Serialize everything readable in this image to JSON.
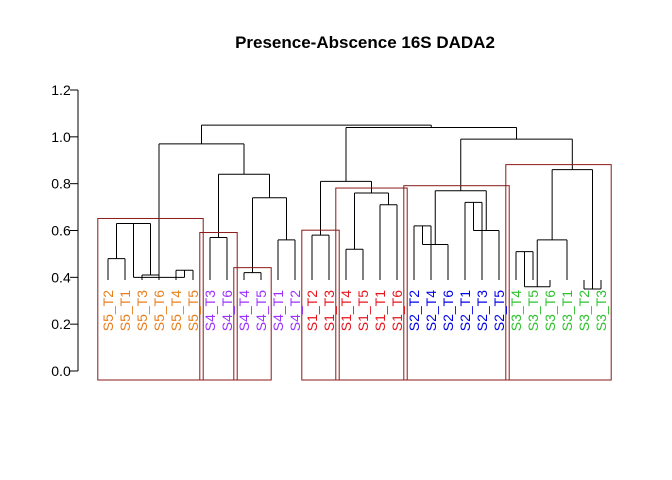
{
  "chart_data": {
    "type": "dendrogram",
    "title": "Presence-Abscence  16S DADA2",
    "xlabel": "",
    "ylabel": "",
    "ylim": [
      0,
      1.2
    ],
    "y_ticks": [
      "0.0",
      "0.2",
      "0.4",
      "0.6",
      "0.8",
      "1.0",
      "1.2"
    ],
    "grid": false,
    "legend": "none",
    "colors": {
      "S5": "#e87f1d",
      "S4": "#9b30ff",
      "S1": "#e8141c",
      "S2": "#0000e8",
      "S3": "#2fc12f",
      "tree": "#000000",
      "cluster_box": "#8b1a1a"
    },
    "leaves": [
      {
        "label": "S5_T2",
        "group": "S5"
      },
      {
        "label": "S5_T1",
        "group": "S5"
      },
      {
        "label": "S5_T3",
        "group": "S5"
      },
      {
        "label": "S5_T6",
        "group": "S5"
      },
      {
        "label": "S5_T4",
        "group": "S5"
      },
      {
        "label": "S5_T5",
        "group": "S5"
      },
      {
        "label": "S4_T3",
        "group": "S4"
      },
      {
        "label": "S4_T6",
        "group": "S4"
      },
      {
        "label": "S4_T4",
        "group": "S4"
      },
      {
        "label": "S4_T5",
        "group": "S4"
      },
      {
        "label": "S4_T1",
        "group": "S4"
      },
      {
        "label": "S4_T2",
        "group": "S4"
      },
      {
        "label": "S1_T2",
        "group": "S1"
      },
      {
        "label": "S1_T3",
        "group": "S1"
      },
      {
        "label": "S1_T4",
        "group": "S1"
      },
      {
        "label": "S1_T5",
        "group": "S1"
      },
      {
        "label": "S1_T1",
        "group": "S1"
      },
      {
        "label": "S1_T6",
        "group": "S1"
      },
      {
        "label": "S2_T2",
        "group": "S2"
      },
      {
        "label": "S2_T4",
        "group": "S2"
      },
      {
        "label": "S2_T6",
        "group": "S2"
      },
      {
        "label": "S2_T1",
        "group": "S2"
      },
      {
        "label": "S2_T3",
        "group": "S2"
      },
      {
        "label": "S2_T5",
        "group": "S2"
      },
      {
        "label": "S3_T4",
        "group": "S3"
      },
      {
        "label": "S3_T5",
        "group": "S3"
      },
      {
        "label": "S3_T6",
        "group": "S3"
      },
      {
        "label": "S3_T1",
        "group": "S3"
      },
      {
        "label": "S3_T2",
        "group": "S3"
      },
      {
        "label": "S3_T3",
        "group": "S3"
      }
    ],
    "merges": [
      {
        "left": -1,
        "right": -2,
        "height": 0.48
      },
      {
        "left": -3,
        "right": -4,
        "height": 0.41
      },
      {
        "left": 1,
        "right": 2,
        "height": 0.63
      },
      {
        "left": -5,
        "right": -6,
        "height": 0.43
      },
      {
        "left": 3,
        "right": 4,
        "height": 0.4
      },
      {
        "left": -7,
        "right": -8,
        "height": 0.57
      },
      {
        "left": -9,
        "right": -10,
        "height": 0.42
      },
      {
        "left": -11,
        "right": -12,
        "height": 0.56
      },
      {
        "left": 7,
        "right": 8,
        "height": 0.74
      },
      {
        "left": 6,
        "right": 9,
        "height": 0.84
      },
      {
        "left": 5,
        "right": 10,
        "height": 0.97
      },
      {
        "left": -13,
        "right": -14,
        "height": 0.58
      },
      {
        "left": -15,
        "right": -16,
        "height": 0.52
      },
      {
        "left": -17,
        "right": -18,
        "height": 0.71
      },
      {
        "left": 13,
        "right": 14,
        "height": 0.76
      },
      {
        "left": 12,
        "right": 15,
        "height": 0.81
      },
      {
        "left": -19,
        "right": -20,
        "height": 0.62
      },
      {
        "left": -21,
        "right": 17,
        "height": 0.54
      },
      {
        "left": -22,
        "right": -23,
        "height": 0.72
      },
      {
        "left": -24,
        "right": 19,
        "height": 0.6
      },
      {
        "left": 18,
        "right": 20,
        "height": 0.77
      },
      {
        "left": -25,
        "right": -26,
        "height": 0.51
      },
      {
        "left": -27,
        "right": 22,
        "height": 0.36
      },
      {
        "left": -28,
        "right": 23,
        "height": 0.56
      },
      {
        "left": -29,
        "right": -30,
        "height": 0.35
      },
      {
        "left": 24,
        "right": 25,
        "height": 0.86
      },
      {
        "left": 21,
        "right": 26,
        "height": 0.99
      },
      {
        "left": 16,
        "right": 27,
        "height": 1.04
      },
      {
        "left": 11,
        "right": 28,
        "height": 1.05
      }
    ],
    "clusters": [
      {
        "from": 1,
        "to": 6
      },
      {
        "from": 7,
        "to": 8
      },
      {
        "from": 9,
        "to": 10
      },
      {
        "from": 13,
        "to": 14
      },
      {
        "from": 15,
        "to": 18
      },
      {
        "from": 19,
        "to": 24
      },
      {
        "from": 25,
        "to": 30
      }
    ]
  }
}
